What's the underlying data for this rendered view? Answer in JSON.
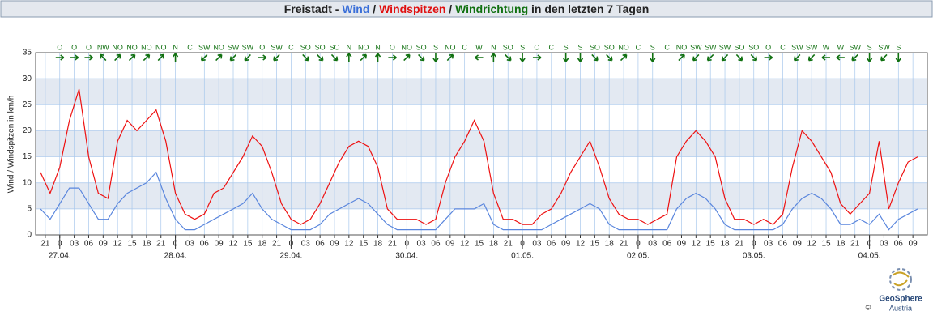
{
  "chart_data": {
    "type": "line",
    "title_parts": [
      {
        "text": "Freistadt - ",
        "color": "#222222"
      },
      {
        "text": "Wind",
        "color": "#3a6fd8"
      },
      {
        "text": " / ",
        "color": "#222222"
      },
      {
        "text": "Windspitzen",
        "color": "#e01010"
      },
      {
        "text": " / ",
        "color": "#222222"
      },
      {
        "text": "Windrichtung",
        "color": "#107010"
      },
      {
        "text": " in den letzten 7 Tagen",
        "color": "#222222"
      }
    ],
    "ylabel": "Wind / Windspitzen in km/h",
    "x": [
      20,
      22,
      24,
      26,
      28,
      30,
      32,
      34,
      36,
      38,
      40,
      42,
      44,
      46,
      48,
      50,
      52,
      54,
      56,
      58,
      60,
      62,
      64,
      66,
      68,
      70,
      72,
      74,
      76,
      78,
      80,
      82,
      84,
      86,
      88,
      90,
      92,
      94,
      96,
      98,
      100,
      102,
      104,
      106,
      108,
      110,
      112,
      114,
      116,
      118,
      120,
      122,
      124,
      126,
      128,
      130,
      132,
      134,
      136,
      138,
      140,
      142,
      144,
      146,
      148,
      150,
      152,
      154,
      156,
      158,
      160,
      162,
      164,
      166,
      168,
      170,
      172,
      174,
      176,
      178,
      180,
      182,
      184,
      186,
      188,
      190,
      192,
      194,
      196,
      198,
      200,
      202
    ],
    "series": [
      {
        "name": "Windspitzen",
        "color": "#ee1111",
        "values": [
          12,
          8,
          13,
          22,
          28,
          15,
          8,
          7,
          18,
          22,
          20,
          22,
          24,
          18,
          8,
          4,
          3,
          4,
          8,
          9,
          12,
          15,
          19,
          17,
          12,
          6,
          3,
          2,
          3,
          6,
          10,
          14,
          17,
          18,
          17,
          13,
          5,
          3,
          3,
          3,
          2,
          3,
          10,
          15,
          18,
          22,
          18,
          8,
          3,
          3,
          2,
          2,
          4,
          5,
          8,
          12,
          15,
          18,
          13,
          7,
          4,
          3,
          3,
          2,
          3,
          4,
          15,
          18,
          20,
          18,
          15,
          7,
          3,
          3,
          2,
          3,
          2,
          4,
          13,
          20,
          18,
          15,
          12,
          6,
          4,
          6,
          8,
          18,
          5,
          10,
          14,
          15
        ]
      },
      {
        "name": "Wind",
        "color": "#5a86dd",
        "values": [
          5,
          3,
          6,
          9,
          9,
          6,
          3,
          3,
          6,
          8,
          9,
          10,
          12,
          7,
          3,
          1,
          1,
          2,
          3,
          4,
          5,
          6,
          8,
          5,
          3,
          2,
          1,
          1,
          1,
          2,
          4,
          5,
          6,
          7,
          6,
          4,
          2,
          1,
          1,
          1,
          1,
          1,
          3,
          5,
          5,
          5,
          6,
          2,
          1,
          1,
          1,
          1,
          1,
          2,
          3,
          4,
          5,
          6,
          5,
          2,
          1,
          1,
          1,
          1,
          1,
          1,
          5,
          7,
          8,
          7,
          5,
          2,
          1,
          1,
          1,
          1,
          1,
          2,
          5,
          7,
          8,
          7,
          5,
          2,
          2,
          3,
          2,
          4,
          1,
          3,
          4,
          5
        ]
      }
    ],
    "xlim": [
      19,
      204
    ],
    "ylim": [
      0,
      35
    ],
    "yticks": [
      0,
      5,
      10,
      15,
      20,
      25,
      30,
      35
    ],
    "xticks": [
      {
        "value": 21,
        "label": "21"
      },
      {
        "value": 24,
        "label": "0"
      },
      {
        "value": 27,
        "label": "03"
      },
      {
        "value": 30,
        "label": "06"
      },
      {
        "value": 33,
        "label": "09"
      },
      {
        "value": 36,
        "label": "12"
      },
      {
        "value": 39,
        "label": "15"
      },
      {
        "value": 42,
        "label": "18"
      },
      {
        "value": 45,
        "label": "21"
      },
      {
        "value": 48,
        "label": "0"
      },
      {
        "value": 51,
        "label": "03"
      },
      {
        "value": 54,
        "label": "06"
      },
      {
        "value": 57,
        "label": "09"
      },
      {
        "value": 60,
        "label": "12"
      },
      {
        "value": 63,
        "label": "15"
      },
      {
        "value": 66,
        "label": "18"
      },
      {
        "value": 69,
        "label": "21"
      },
      {
        "value": 72,
        "label": "0"
      },
      {
        "value": 75,
        "label": "03"
      },
      {
        "value": 78,
        "label": "06"
      },
      {
        "value": 81,
        "label": "09"
      },
      {
        "value": 84,
        "label": "12"
      },
      {
        "value": 87,
        "label": "15"
      },
      {
        "value": 90,
        "label": "18"
      },
      {
        "value": 93,
        "label": "21"
      },
      {
        "value": 96,
        "label": "0"
      },
      {
        "value": 99,
        "label": "03"
      },
      {
        "value": 102,
        "label": "06"
      },
      {
        "value": 105,
        "label": "09"
      },
      {
        "value": 108,
        "label": "12"
      },
      {
        "value": 111,
        "label": "15"
      },
      {
        "value": 114,
        "label": "18"
      },
      {
        "value": 117,
        "label": "21"
      },
      {
        "value": 120,
        "label": "0"
      },
      {
        "value": 123,
        "label": "03"
      },
      {
        "value": 126,
        "label": "06"
      },
      {
        "value": 129,
        "label": "09"
      },
      {
        "value": 132,
        "label": "12"
      },
      {
        "value": 135,
        "label": "15"
      },
      {
        "value": 138,
        "label": "18"
      },
      {
        "value": 141,
        "label": "21"
      },
      {
        "value": 144,
        "label": "0"
      },
      {
        "value": 147,
        "label": "03"
      },
      {
        "value": 150,
        "label": "06"
      },
      {
        "value": 153,
        "label": "09"
      },
      {
        "value": 156,
        "label": "12"
      },
      {
        "value": 159,
        "label": "15"
      },
      {
        "value": 162,
        "label": "18"
      },
      {
        "value": 165,
        "label": "21"
      },
      {
        "value": 168,
        "label": "0"
      },
      {
        "value": 171,
        "label": "03"
      },
      {
        "value": 174,
        "label": "06"
      },
      {
        "value": 177,
        "label": "09"
      },
      {
        "value": 180,
        "label": "12"
      },
      {
        "value": 183,
        "label": "15"
      },
      {
        "value": 186,
        "label": "18"
      },
      {
        "value": 189,
        "label": "21"
      },
      {
        "value": 192,
        "label": "0"
      },
      {
        "value": 195,
        "label": "03"
      },
      {
        "value": 198,
        "label": "06"
      },
      {
        "value": 201,
        "label": "09"
      }
    ],
    "date_labels": [
      {
        "value": 24,
        "label": "27.04."
      },
      {
        "value": 48,
        "label": "28.04."
      },
      {
        "value": 72,
        "label": "29.04."
      },
      {
        "value": 96,
        "label": "30.04."
      },
      {
        "value": 120,
        "label": "01.05."
      },
      {
        "value": 144,
        "label": "02.05."
      },
      {
        "value": 168,
        "label": "03.05."
      },
      {
        "value": 192,
        "label": "04.05."
      }
    ],
    "direction": {
      "color": "#107010",
      "x": [
        24,
        27,
        30,
        33,
        36,
        39,
        42,
        45,
        48,
        51,
        54,
        57,
        60,
        63,
        66,
        69,
        72,
        75,
        78,
        81,
        84,
        87,
        90,
        93,
        96,
        99,
        102,
        105,
        108,
        111,
        114,
        117,
        120,
        123,
        126,
        129,
        132,
        135,
        138,
        141,
        144,
        147,
        150,
        153,
        156,
        159,
        162,
        165,
        168,
        171,
        174,
        177,
        180,
        183,
        186,
        189,
        192,
        195,
        198
      ],
      "labels": [
        "O",
        "O",
        "O",
        "NW",
        "NO",
        "NO",
        "NO",
        "NO",
        "N",
        "C",
        "SW",
        "NO",
        "SW",
        "SW",
        "O",
        "SW",
        "C",
        "SO",
        "SO",
        "SO",
        "N",
        "NO",
        "N",
        "O",
        "NO",
        "SO",
        "S",
        "NO",
        "C",
        "W",
        "N",
        "SO",
        "S",
        "O",
        "C",
        "S",
        "S",
        "SO",
        "SO",
        "NO",
        "C",
        "S",
        "C",
        "NO",
        "SW",
        "SW",
        "SW",
        "SO",
        "SO",
        "O",
        "C",
        "SW",
        "SW",
        "W",
        "W",
        "SW",
        "S",
        "SW",
        "S"
      ]
    },
    "shaded_bands": true,
    "grid": true,
    "logo": {
      "copyright": "©",
      "name": "GeoSphere",
      "sub": "Austria"
    }
  }
}
